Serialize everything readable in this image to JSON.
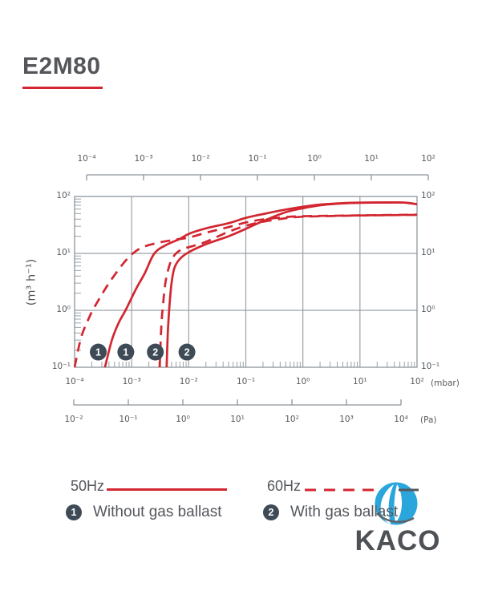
{
  "page": {
    "title": "E2M80",
    "accent_color": "#d22630"
  },
  "axes": {
    "top": {
      "labels": [
        "10⁻⁴",
        "10⁻³",
        "10⁻²",
        "10⁻¹",
        "10⁰",
        "10¹",
        "10²"
      ]
    },
    "bottom_mbar": {
      "labels": [
        "10⁻⁴",
        "10⁻³",
        "10⁻²",
        "10⁻¹",
        "10⁰",
        "10¹",
        "10²"
      ],
      "unit": "(mbar)"
    },
    "bottom_pa": {
      "labels": [
        "10⁻²",
        "10⁻¹",
        "10⁰",
        "10¹",
        "10²",
        "10³",
        "10⁴"
      ],
      "unit": "(Pa)"
    },
    "y_left": {
      "labels": [
        "10²",
        "10¹",
        "10⁰",
        "10⁻¹"
      ],
      "unit": "(m³ h⁻¹)"
    },
    "y_right": {
      "labels": [
        "10²",
        "10¹",
        "10⁰",
        "10⁻¹"
      ]
    }
  },
  "chart_data": {
    "type": "line",
    "title": "E2M80",
    "x_scale": "log",
    "y_scale": "log",
    "x_range_mbar": [
      0.0001,
      100
    ],
    "x_range_pa": [
      0.01,
      10000
    ],
    "y_range": [
      0.1,
      100
    ],
    "ylabel": "(m³ h⁻¹)",
    "x_unit_labels": [
      "(mbar)",
      "(Pa)"
    ],
    "line_color": "#d22630",
    "grid": true,
    "series": [
      {
        "name": "50Hz without gas ballast",
        "frequency": "50Hz",
        "gas_ballast": false,
        "style": "solid",
        "marker": "1",
        "points": [
          [
            0.00034,
            0.1
          ],
          [
            0.00045,
            0.3
          ],
          [
            0.0006,
            0.62
          ],
          [
            0.00078,
            1.0
          ],
          [
            0.0012,
            2.4
          ],
          [
            0.0017,
            4.5
          ],
          [
            0.0025,
            10
          ],
          [
            0.004,
            14
          ],
          [
            0.007,
            18
          ],
          [
            0.01,
            22
          ],
          [
            0.02,
            27.5
          ],
          [
            0.05,
            34
          ],
          [
            0.1,
            42
          ],
          [
            0.2,
            49
          ],
          [
            0.5,
            59
          ],
          [
            1,
            66
          ],
          [
            2,
            72
          ],
          [
            5,
            76.5
          ],
          [
            10,
            78
          ],
          [
            30,
            78.5
          ],
          [
            60,
            78
          ],
          [
            100,
            73
          ]
        ]
      },
      {
        "name": "50Hz with gas ballast",
        "frequency": "50Hz",
        "gas_ballast": true,
        "style": "solid",
        "marker": "2",
        "points": [
          [
            0.0041,
            0.1
          ],
          [
            0.0043,
            0.4
          ],
          [
            0.0046,
            1.2
          ],
          [
            0.005,
            3.0
          ],
          [
            0.0056,
            5.5
          ],
          [
            0.007,
            8.0
          ],
          [
            0.01,
            10.5
          ],
          [
            0.02,
            14.5
          ],
          [
            0.05,
            20
          ],
          [
            0.1,
            27
          ],
          [
            0.2,
            37
          ],
          [
            0.5,
            53
          ],
          [
            1,
            62
          ],
          [
            2,
            70
          ],
          [
            5,
            75.5
          ],
          [
            10,
            77.5
          ],
          [
            30,
            78.5
          ],
          [
            60,
            78
          ],
          [
            100,
            73
          ]
        ]
      },
      {
        "name": "60Hz without gas ballast",
        "frequency": "60Hz",
        "gas_ballast": false,
        "style": "dashed",
        "marker": "1",
        "points": [
          [
            0.0001,
            0.1
          ],
          [
            0.00013,
            0.33
          ],
          [
            0.00018,
            0.75
          ],
          [
            0.00024,
            1.3
          ],
          [
            0.0004,
            3.0
          ],
          [
            0.0007,
            6.5
          ],
          [
            0.00105,
            10
          ],
          [
            0.0016,
            13
          ],
          [
            0.003,
            15.5
          ],
          [
            0.006,
            17.5
          ],
          [
            0.01,
            19
          ],
          [
            0.02,
            23
          ],
          [
            0.05,
            29
          ],
          [
            0.1,
            35
          ],
          [
            0.2,
            39.5
          ],
          [
            0.5,
            43.5
          ],
          [
            1,
            45
          ],
          [
            5,
            46
          ],
          [
            10,
            46.5
          ],
          [
            50,
            47.5
          ],
          [
            100,
            48
          ]
        ]
      },
      {
        "name": "60Hz with gas ballast",
        "frequency": "60Hz",
        "gas_ballast": true,
        "style": "dashed",
        "marker": "2",
        "points": [
          [
            0.0031,
            0.1
          ],
          [
            0.0033,
            0.5
          ],
          [
            0.0036,
            1.5
          ],
          [
            0.004,
            3.5
          ],
          [
            0.0048,
            7
          ],
          [
            0.006,
            10
          ],
          [
            0.008,
            12
          ],
          [
            0.012,
            13.5
          ],
          [
            0.02,
            16
          ],
          [
            0.05,
            24
          ],
          [
            0.1,
            30.5
          ],
          [
            0.2,
            36
          ],
          [
            0.5,
            41.5
          ],
          [
            1,
            44
          ],
          [
            5,
            45.8
          ],
          [
            10,
            46.3
          ],
          [
            50,
            47.2
          ],
          [
            100,
            47.5
          ]
        ]
      }
    ],
    "markers": [
      {
        "label": "1",
        "meaning": "Without gas ballast",
        "positions": [
          [
            0.00026,
            0.185
          ],
          [
            0.00079,
            0.185
          ]
        ]
      },
      {
        "label": "2",
        "meaning": "With gas ballast",
        "positions": [
          [
            0.0026,
            0.185
          ],
          [
            0.0093,
            0.185
          ]
        ]
      }
    ]
  },
  "legend": {
    "freq50": "50Hz",
    "freq60": "60Hz",
    "item1": {
      "num": "1",
      "label": "Without gas ballast"
    },
    "item2": {
      "num": "2",
      "label": "With gas ballast"
    }
  },
  "logo": {
    "text": "KACO",
    "circle_color": "#2aa6dd"
  }
}
